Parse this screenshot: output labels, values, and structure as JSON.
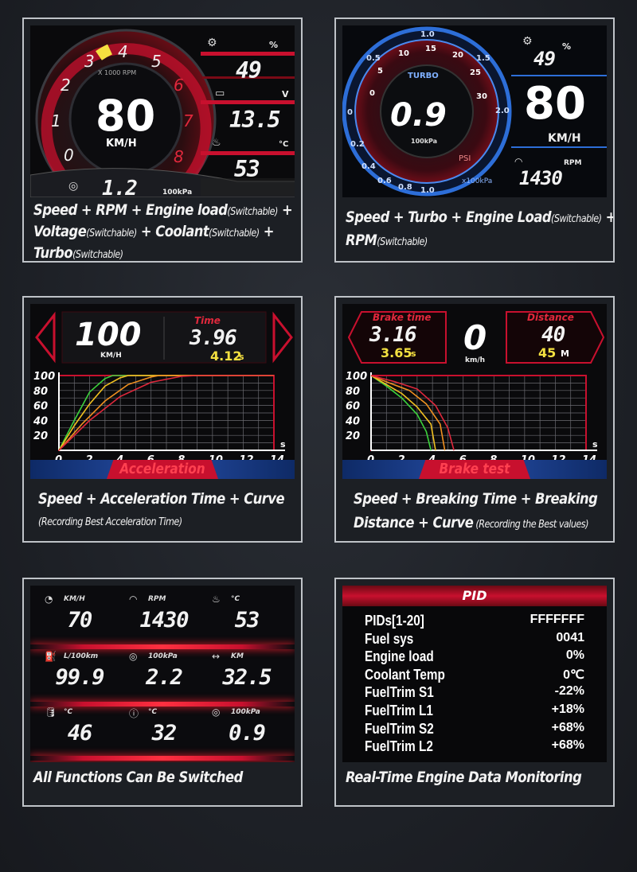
{
  "panel1": {
    "speed": "80",
    "speed_unit": "KM/H",
    "rpm_label": "X 1000 RPM",
    "dial_numbers": [
      "0",
      "1",
      "2",
      "3",
      "4",
      "5",
      "6",
      "7",
      "8"
    ],
    "load_unit": "%",
    "load_value": "49",
    "voltage_unit": "V",
    "voltage_value": "13.5",
    "coolant_unit": "°C",
    "coolant_value": "53",
    "turbo_value": "1.2",
    "turbo_unit": "100kPa",
    "caption_line1_main": "Speed + RPM + Engine load",
    "caption_line1_small": "(Switchable)",
    "caption_line1_end": " +",
    "caption_line2_main": "Voltage",
    "caption_line2_small": "(Switchable)",
    "caption_line2_mid": " + Coolant",
    "caption_line2_small2": "(Switchable)",
    "caption_line2_end": " +",
    "caption_line3_main": "Turbo",
    "caption_line3_small": "(Switchable)"
  },
  "panel2": {
    "turbo_value": "0.9",
    "turbo_unit": "100kPa",
    "turbo_label": "TURBO",
    "psi_label": "PSI",
    "x100kpa_label": "x100kPa",
    "outer_ticks": [
      "1.0",
      "0.5",
      "1.5",
      "2.0",
      "0",
      "0.2",
      "0.4",
      "0.6",
      "0.8",
      "1.0"
    ],
    "inner_ticks": [
      "0",
      "5",
      "10",
      "15",
      "20",
      "25",
      "30"
    ],
    "load_unit": "%",
    "load_value": "49",
    "speed": "80",
    "speed_unit": "KM/H",
    "rpm_unit": "RPM",
    "rpm_value": "1430",
    "caption_line1_main": "Speed + Turbo + Engine Load",
    "caption_line1_small": "(Switchable)",
    "caption_line1_end": " +",
    "caption_line2_main": "RPM",
    "caption_line2_small": "(Switchable)"
  },
  "panel3": {
    "speed": "100",
    "speed_unit": "KM/H",
    "time_label": "Time",
    "time_value": "3.96",
    "best_value": "4.12",
    "best_unit": "s",
    "banner": "Acceleration",
    "caption_line1": "Speed + Acceleration Time + Curve",
    "caption_line2": "(Recording Best Acceleration Time)"
  },
  "panel4": {
    "brake_time_label": "Brake time",
    "brake_time_value": "3.16",
    "brake_best_value": "3.65",
    "brake_best_unit": "s",
    "speed": "0",
    "speed_unit": "km/h",
    "distance_label": "Distance",
    "distance_value": "40",
    "distance_best_value": "45",
    "distance_best_unit": "M",
    "banner": "Brake test",
    "caption_line1": "Speed + Breaking Time + Breaking",
    "caption_line2_main": "Distance + Curve",
    "caption_line2_small": " (Recording the Best values)"
  },
  "panel5": {
    "rows": [
      [
        {
          "icon": "speedometer-icon",
          "unit": "KM/H",
          "value": "70"
        },
        {
          "icon": "rpm-gauge-icon",
          "unit": "RPM",
          "value": "1430"
        },
        {
          "icon": "coolant-temp-icon",
          "unit": "°C",
          "value": "53"
        }
      ],
      [
        {
          "icon": "fuel-pump-icon",
          "unit": "L/100km",
          "value": "99.9"
        },
        {
          "icon": "turbo-icon",
          "unit": "100kPa",
          "value": "2.2"
        },
        {
          "icon": "trip-distance-icon",
          "unit": "KM",
          "value": "32.5"
        }
      ],
      [
        {
          "icon": "oil-can-icon",
          "unit": "°C",
          "value": "46"
        },
        {
          "icon": "thermometer-icon",
          "unit": "°C",
          "value": "32"
        },
        {
          "icon": "turbo-icon",
          "unit": "100kPa",
          "value": "0.9"
        }
      ]
    ],
    "caption": "All Functions Can Be Switched"
  },
  "panel6": {
    "title": "PID",
    "rows": [
      {
        "key": "PIDs[1-20]",
        "value": "FFFFFFF"
      },
      {
        "key": "Fuel sys",
        "value": "0041"
      },
      {
        "key": "Engine load",
        "value": "0%"
      },
      {
        "key": "Coolant Temp",
        "value": "0℃"
      },
      {
        "key": "FuelTrim S1",
        "value": "-22%"
      },
      {
        "key": "FuelTrim L1",
        "value": "+18%"
      },
      {
        "key": "FuelTrim S2",
        "value": "+68%"
      },
      {
        "key": "FuelTrim L2",
        "value": "+68%"
      }
    ],
    "caption": "Real-Time Engine Data Monitoring"
  },
  "chart_data": [
    {
      "type": "line",
      "x": [
        0,
        2,
        4,
        6,
        8,
        10,
        12,
        14
      ],
      "y_ticks": [
        20,
        40,
        60,
        80,
        100
      ],
      "x_ticks": [
        "0",
        "2",
        "4",
        "6",
        "8",
        "10",
        "12",
        "14"
      ],
      "y_tick_labels": [
        "20",
        "40",
        "60",
        "80",
        "100"
      ],
      "x_unit": "s",
      "xlim": [
        0,
        14
      ],
      "ylim": [
        0,
        100
      ],
      "grid": true,
      "series": [
        {
          "color": "#3cd23c",
          "points": [
            [
              0,
              0
            ],
            [
              1,
              40
            ],
            [
              2,
              78
            ],
            [
              3,
              96
            ],
            [
              3.5,
              100
            ],
            [
              14,
              100
            ]
          ]
        },
        {
          "color": "#f0c020",
          "points": [
            [
              0,
              0
            ],
            [
              1,
              33
            ],
            [
              2,
              62
            ],
            [
              3,
              86
            ],
            [
              4,
              97
            ],
            [
              4.5,
              100
            ],
            [
              14,
              100
            ]
          ]
        },
        {
          "color": "#f09020",
          "points": [
            [
              0,
              0
            ],
            [
              1.5,
              35
            ],
            [
              3,
              66
            ],
            [
              4.5,
              88
            ],
            [
              6,
              98
            ],
            [
              6.5,
              100
            ],
            [
              14,
              100
            ]
          ]
        },
        {
          "color": "#e0283c",
          "points": [
            [
              0,
              0
            ],
            [
              2,
              40
            ],
            [
              4,
              72
            ],
            [
              6,
              91
            ],
            [
              8,
              99
            ],
            [
              9,
              100
            ],
            [
              14,
              100
            ]
          ]
        }
      ]
    },
    {
      "type": "line",
      "x": [
        0,
        2,
        4,
        6,
        8,
        10,
        12,
        14
      ],
      "y_ticks": [
        20,
        40,
        60,
        80,
        100
      ],
      "x_ticks": [
        "0",
        "2",
        "4",
        "6",
        "8",
        "10",
        "12",
        "14"
      ],
      "y_tick_labels": [
        "20",
        "40",
        "60",
        "80",
        "100"
      ],
      "x_unit": "s",
      "xlim": [
        0,
        14
      ],
      "ylim": [
        0,
        100
      ],
      "grid": true,
      "series": [
        {
          "color": "#3cd23c",
          "points": [
            [
              0,
              100
            ],
            [
              1,
              86
            ],
            [
              2,
              70
            ],
            [
              3,
              48
            ],
            [
              3.6,
              25
            ],
            [
              3.9,
              0
            ]
          ]
        },
        {
          "color": "#f0c020",
          "points": [
            [
              0,
              100
            ],
            [
              1,
              88
            ],
            [
              2,
              76
            ],
            [
              3,
              58
            ],
            [
              3.9,
              35
            ],
            [
              4.2,
              0
            ]
          ]
        },
        {
          "color": "#f09020",
          "points": [
            [
              0,
              100
            ],
            [
              1.2,
              90
            ],
            [
              2.5,
              80
            ],
            [
              3.6,
              62
            ],
            [
              4.5,
              35
            ],
            [
              4.8,
              0
            ]
          ]
        },
        {
          "color": "#e0283c",
          "points": [
            [
              0,
              100
            ],
            [
              1.5,
              92
            ],
            [
              3,
              82
            ],
            [
              4.2,
              60
            ],
            [
              5,
              30
            ],
            [
              5.4,
              0
            ]
          ]
        }
      ]
    }
  ]
}
